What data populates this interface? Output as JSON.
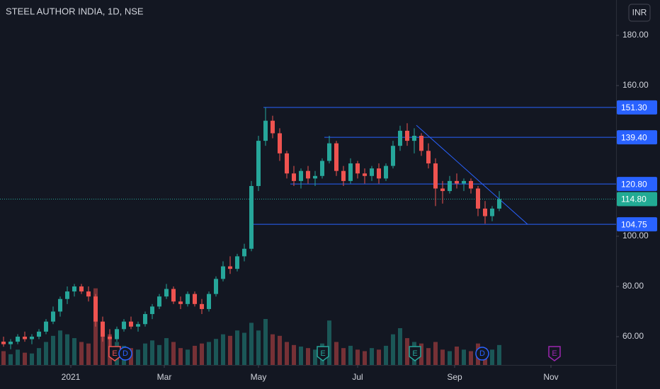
{
  "chart_data": {
    "type": "candlestick",
    "title": "STEEL AUTHOR INDIA, 1D, NSE",
    "currency": "INR",
    "ylim": [
      48.73,
      194.08
    ],
    "xlim": [
      -0.5,
      86.5
    ],
    "yticks": [
      {
        "value": 60,
        "label": "60.00"
      },
      {
        "value": 80,
        "label": "80.00"
      },
      {
        "value": 100,
        "label": "100.00"
      },
      {
        "value": 160,
        "label": "160.00"
      },
      {
        "value": 180,
        "label": "180.00"
      }
    ],
    "xticks": [
      {
        "value": 9.5,
        "label": "2021"
      },
      {
        "value": 22.7,
        "label": "Mar"
      },
      {
        "value": 36,
        "label": "May"
      },
      {
        "value": 50,
        "label": "Jul"
      },
      {
        "value": 63.7,
        "label": "Sep"
      },
      {
        "value": 77.3,
        "label": "Nov"
      }
    ],
    "grid": false,
    "up_color": "#26a69a",
    "down_color": "#ef5350",
    "open": [
      58,
      57,
      58,
      60,
      59,
      60,
      62,
      66,
      70,
      75,
      78,
      80,
      78,
      76,
      66,
      60,
      59,
      63,
      66,
      64,
      65,
      69,
      72,
      76,
      79,
      74,
      73,
      77,
      73,
      71,
      77,
      83,
      88,
      87,
      92,
      95,
      120,
      138,
      146,
      141,
      133,
      125,
      122,
      126,
      123,
      124,
      130,
      137,
      126,
      122,
      129,
      125,
      124,
      127,
      123,
      128,
      136,
      142,
      138,
      140,
      134,
      129,
      119,
      118,
      122,
      121,
      122,
      119,
      111,
      108,
      111
    ],
    "high": [
      60,
      59,
      61,
      62,
      61,
      63,
      67,
      72,
      76,
      80,
      81,
      81,
      80,
      77,
      68,
      63,
      64,
      67,
      68,
      66,
      70,
      73,
      77,
      81,
      80,
      76,
      78,
      78,
      75,
      78,
      84,
      90,
      92,
      93,
      97,
      122,
      140,
      151.3,
      148,
      143,
      134,
      128,
      127,
      128,
      126,
      131,
      140,
      138,
      128,
      131,
      130,
      127,
      128,
      129,
      129,
      138,
      144,
      145,
      143,
      141,
      137,
      131,
      122,
      124,
      125,
      123,
      123,
      120,
      114,
      112,
      118
    ],
    "low": [
      56,
      55,
      57,
      58,
      57,
      59,
      61,
      65,
      68,
      73,
      76,
      77,
      74,
      64,
      58,
      55,
      58,
      62,
      63,
      62,
      64,
      67,
      71,
      75,
      73,
      71,
      72,
      72,
      69,
      70,
      76,
      82,
      85,
      86,
      90,
      94,
      118,
      136,
      139,
      130,
      123,
      120,
      119,
      121,
      120,
      123,
      129,
      124,
      120,
      121,
      123,
      121,
      122,
      121,
      122,
      127,
      134,
      136,
      133,
      132,
      127,
      112,
      113,
      117,
      119,
      118,
      117,
      108,
      105,
      106,
      110
    ],
    "close": [
      57,
      58,
      60,
      59,
      60,
      62,
      66,
      70,
      75,
      78,
      80,
      78,
      76,
      66,
      60,
      59,
      63,
      66,
      64,
      65,
      69,
      72,
      76,
      79,
      74,
      73,
      77,
      73,
      71,
      77,
      83,
      88,
      87,
      92,
      95,
      120,
      138,
      146,
      141,
      133,
      125,
      122,
      126,
      123,
      124,
      130,
      137,
      126,
      122,
      129,
      125,
      124,
      127,
      123,
      128,
      136,
      142,
      138,
      140,
      134,
      129,
      119,
      118,
      122,
      121,
      122,
      119,
      111,
      108,
      111,
      114.8
    ],
    "volume": [
      18,
      14,
      20,
      16,
      15,
      22,
      30,
      38,
      45,
      40,
      35,
      30,
      28,
      100,
      55,
      40,
      30,
      25,
      22,
      20,
      28,
      32,
      26,
      35,
      30,
      22,
      20,
      25,
      28,
      30,
      34,
      40,
      38,
      45,
      42,
      55,
      45,
      60,
      40,
      38,
      30,
      26,
      24,
      22,
      20,
      28,
      58,
      30,
      22,
      25,
      20,
      18,
      22,
      20,
      25,
      40,
      48,
      35,
      30,
      28,
      22,
      30,
      20,
      18,
      24,
      20,
      18,
      28,
      22,
      20,
      26
    ],
    "vlim": [
      0,
      120
    ],
    "last_price": {
      "value": 114.8,
      "label": "114.80"
    },
    "levels": [
      {
        "value": 151.3,
        "label": "151.30",
        "start": 36.7
      },
      {
        "value": 139.4,
        "label": "139.40",
        "start": 45.3
      },
      {
        "value": 120.8,
        "label": "120.80",
        "start": 40.5
      },
      {
        "value": 104.75,
        "label": "104.75",
        "start": 35.3
      }
    ],
    "trendline": {
      "x": [
        58.3,
        74
      ],
      "y": [
        144.2,
        104.75
      ]
    },
    "events": [
      {
        "label": "E",
        "x": 15.7,
        "color": "#ef5350",
        "shape": "shield"
      },
      {
        "label": "D",
        "x": 17.2,
        "color": "#2962ff",
        "shape": "circle"
      },
      {
        "label": "E",
        "x": 45.1,
        "color": "#26a69a",
        "shape": "shield"
      },
      {
        "label": "E",
        "x": 58.1,
        "color": "#26a69a",
        "shape": "shield"
      },
      {
        "label": "D",
        "x": 67.6,
        "color": "#2962ff",
        "shape": "circle"
      },
      {
        "label": "E",
        "x": 77.8,
        "color": "#9c27b0",
        "shape": "shield"
      }
    ]
  }
}
